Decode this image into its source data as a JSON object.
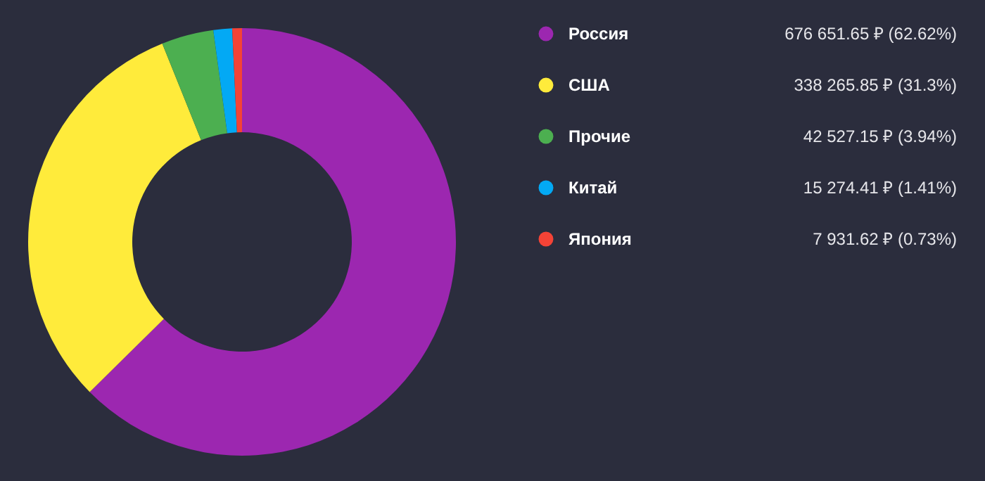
{
  "chart_data": {
    "type": "donut",
    "categories": [
      "Россия",
      "США",
      "Прочие",
      "Китай",
      "Япония"
    ],
    "values": [
      676651.65,
      338265.85,
      42527.15,
      15274.41,
      7931.62
    ],
    "value_labels": [
      "676 651.65 ₽ (62.62%)",
      "338 265.85 ₽ (31.3%)",
      "42 527.15 ₽ (3.94%)",
      "15 274.41 ₽ (1.41%)",
      "7 931.62 ₽ (0.73%)"
    ],
    "colors": [
      "#9c27b0",
      "#ffeb3b",
      "#4caf50",
      "#03a9f4",
      "#f44336"
    ],
    "legend": "right"
  }
}
